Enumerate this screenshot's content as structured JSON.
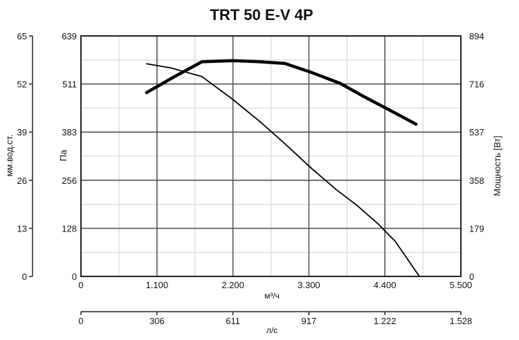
{
  "chart_data": {
    "type": "line",
    "title": "TRT 50 E-V 4P",
    "x_axis_primary": {
      "label": "м³/ч",
      "ticks": [
        "0",
        "1.100",
        "2.200",
        "3.300",
        "4.400",
        "5.500"
      ],
      "range": [
        0,
        5500
      ]
    },
    "x_axis_secondary": {
      "label": "л/с",
      "ticks": [
        "0",
        "306",
        "611",
        "917",
        "1.222",
        "1.528"
      ],
      "range": [
        0,
        1528
      ]
    },
    "y_axis_left_outer": {
      "label": "мм.вод.ст.",
      "ticks": [
        "0",
        "13",
        "26",
        "39",
        "52",
        "65"
      ],
      "range": [
        0,
        65
      ]
    },
    "y_axis_left_inner": {
      "label": "Па",
      "ticks": [
        "0",
        "128",
        "256",
        "383",
        "511",
        "639"
      ],
      "range": [
        0,
        639
      ]
    },
    "y_axis_right": {
      "label": "Мощность [Вт]",
      "ticks": [
        "0",
        "179",
        "358",
        "537",
        "716",
        "894"
      ],
      "range": [
        0,
        894
      ]
    },
    "grid": true,
    "series": [
      {
        "axis": "pressure_pa",
        "style": "thin",
        "color": "#000000",
        "points": [
          [
            950,
            565
          ],
          [
            1300,
            554
          ],
          [
            1750,
            531
          ],
          [
            2200,
            470
          ],
          [
            2600,
            410
          ],
          [
            2950,
            353
          ],
          [
            3350,
            285
          ],
          [
            3700,
            230
          ],
          [
            4000,
            188
          ],
          [
            4300,
            140
          ],
          [
            4550,
            93
          ],
          [
            4900,
            0
          ]
        ]
      },
      {
        "axis": "power_w",
        "style": "thick",
        "color": "#000000",
        "points": [
          [
            950,
            683
          ],
          [
            1300,
            735
          ],
          [
            1750,
            798
          ],
          [
            2200,
            802
          ],
          [
            2600,
            798
          ],
          [
            2950,
            792
          ],
          [
            3350,
            757
          ],
          [
            3750,
            718
          ],
          [
            4100,
            668
          ],
          [
            4500,
            614
          ],
          [
            4850,
            566
          ]
        ]
      }
    ]
  }
}
